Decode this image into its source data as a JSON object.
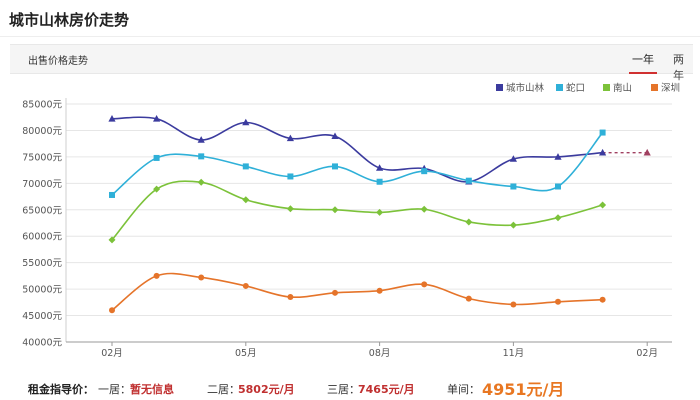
{
  "page": {
    "title": "城市山林房价走势",
    "section_label": "出售价格走势",
    "tabs": [
      "一年",
      "两年"
    ],
    "active_tab": 0
  },
  "footer": {
    "rent_label": "租金指导价：",
    "floor1_label": "一居：",
    "floor1_value": "暂无信息",
    "floor2_label": "二居：",
    "floor2_value": "5802元/月",
    "floor3_label": "三居：",
    "floor3_value": "7465元/月",
    "unit_label": "单间：",
    "unit_value": "4951元/月"
  },
  "colors": {
    "城市山林": "#3b3b9e",
    "蛇口": "#2fb0d8",
    "南山": "#7cc23a",
    "深圳": "#e5742a",
    "forecast": "#a04060",
    "accent": "#d03030"
  },
  "chart_data": {
    "type": "line",
    "x": [
      "02月",
      "03月",
      "04月",
      "05月",
      "06月",
      "07月",
      "08月",
      "09月",
      "10月",
      "11月",
      "12月",
      "01月",
      "02月"
    ],
    "xticks": [
      {
        "index": 0,
        "label": "02月"
      },
      {
        "index": 3,
        "label": "05月"
      },
      {
        "index": 6,
        "label": "08月"
      },
      {
        "index": 9,
        "label": "11月"
      },
      {
        "index": 12,
        "label": "02月"
      }
    ],
    "ylim": [
      40000,
      85000
    ],
    "yticks": [
      40000,
      45000,
      50000,
      55000,
      60000,
      65000,
      70000,
      75000,
      80000,
      85000
    ],
    "ytick_labels": [
      "40000元",
      "45000元",
      "50000元",
      "55000元",
      "60000元",
      "65000元",
      "70000元",
      "75000元",
      "80000元",
      "85000元"
    ],
    "legend_position": "top-right",
    "series": [
      {
        "name": "城市山林",
        "marker": "triangle",
        "values": [
          82200,
          82200,
          78200,
          81500,
          78500,
          78900,
          72900,
          72800,
          70300,
          74600,
          75000,
          75800,
          null
        ],
        "forecast": [
          null,
          null,
          null,
          null,
          null,
          null,
          null,
          null,
          null,
          null,
          null,
          75800,
          75800
        ]
      },
      {
        "name": "蛇口",
        "marker": "square",
        "values": [
          67800,
          74800,
          75100,
          73200,
          71300,
          73200,
          70300,
          72300,
          70500,
          69400,
          69400,
          79600,
          null
        ]
      },
      {
        "name": "南山",
        "marker": "diamond",
        "values": [
          59300,
          68900,
          70200,
          66900,
          65200,
          65000,
          64500,
          65100,
          62700,
          62100,
          63500,
          65900,
          null
        ]
      },
      {
        "name": "深圳",
        "marker": "circle",
        "values": [
          46000,
          52500,
          52200,
          50600,
          48500,
          49300,
          49700,
          50900,
          48200,
          47100,
          47600,
          48000,
          null
        ]
      }
    ]
  }
}
